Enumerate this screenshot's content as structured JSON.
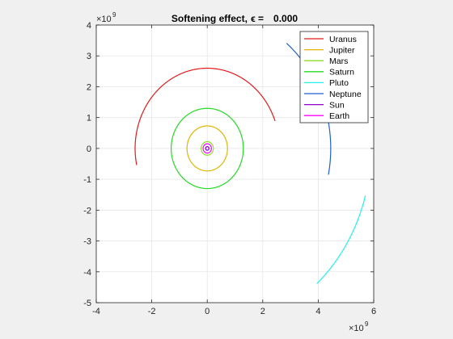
{
  "figure": {
    "background": "#f0f0f0",
    "axes_background": "#ffffff",
    "grid_color": "#e6e6e6",
    "axis_color": "#262626"
  },
  "chart_data": {
    "type": "line",
    "title_main": "Softening effect,",
    "title_symbol": "ϵ =",
    "title_value": "0.000",
    "xlabel": "",
    "ylabel": "",
    "xlim": [
      -4,
      6
    ],
    "ylim": [
      -5,
      4
    ],
    "x_ticks": [
      -4,
      -2,
      0,
      2,
      4,
      6
    ],
    "y_ticks": [
      -5,
      -4,
      -3,
      -2,
      -1,
      0,
      1,
      2,
      3,
      4
    ],
    "x_exponent_base": "×10",
    "x_exponent_power": "9",
    "y_exponent_base": "×10",
    "y_exponent_power": "9",
    "grid": true,
    "legend_position": "top-right",
    "series": [
      {
        "name": "Uranus",
        "color": "#e31a1c",
        "center": [
          0,
          0
        ],
        "radius": 2.6,
        "start_deg": 20,
        "end_deg": 192
      },
      {
        "name": "Jupiter",
        "color": "#e6b400",
        "center": [
          0,
          0
        ],
        "radius": 0.73,
        "start_deg": 0,
        "end_deg": 360
      },
      {
        "name": "Mars",
        "color": "#8fdc2a",
        "center": [
          0,
          0
        ],
        "radius": 0.22,
        "start_deg": 0,
        "end_deg": 360
      },
      {
        "name": "Saturn",
        "color": "#22dc22",
        "center": [
          0,
          0
        ],
        "radius": 1.3,
        "start_deg": 0,
        "end_deg": 360
      },
      {
        "name": "Pluto",
        "color": "#22f0f0",
        "center": [
          0,
          0
        ],
        "radius": 5.9,
        "start_deg": -48,
        "end_deg": -15
      },
      {
        "name": "Neptune",
        "color": "#1f5fd0",
        "center": [
          0,
          0
        ],
        "radius": 4.45,
        "start_deg": -11,
        "end_deg": 50
      },
      {
        "name": "Sun",
        "color": "#8a00d4",
        "center": [
          0,
          0
        ],
        "radius": 0.06,
        "start_deg": 0,
        "end_deg": 360
      },
      {
        "name": "Earth",
        "color": "#ff00ff",
        "center": [
          0,
          0
        ],
        "radius": 0.15,
        "start_deg": 0,
        "end_deg": 360
      }
    ]
  }
}
